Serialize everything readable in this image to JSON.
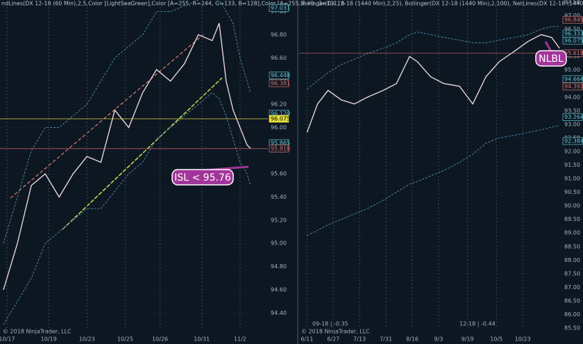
{
  "chart_data": [
    {
      "type": "line",
      "title": "ndLines(DX 12-18 (60 Min),2,5,Color [LightSeaGreen],Color [A=255, R=244, G=133, B=128],Color [A=255, R=0, G=131, B",
      "x": [
        1,
        5,
        9,
        13,
        17,
        21,
        25,
        29,
        33,
        37,
        41,
        45,
        49,
        53,
        57,
        61,
        63,
        65,
        67,
        69,
        71,
        72
      ],
      "xlim": [
        0,
        77
      ],
      "xticks": [
        {
          "value": 2,
          "label": "10/17"
        },
        {
          "value": 14,
          "label": "10/19"
        },
        {
          "value": 25,
          "label": "10/23"
        },
        {
          "value": 36,
          "label": "10/25"
        },
        {
          "value": 46,
          "label": "10/26"
        },
        {
          "value": 58,
          "label": "10/31"
        },
        {
          "value": 69,
          "label": "11/2"
        }
      ],
      "ylim": [
        94.27,
        97.04
      ],
      "yticks": [
        {
          "value": 94.4,
          "label": "94.40"
        },
        {
          "value": 94.6,
          "label": "94.60"
        },
        {
          "value": 94.8,
          "label": "94.80"
        },
        {
          "value": 95,
          "label": "95.00"
        },
        {
          "value": 95.2,
          "label": "95.20"
        },
        {
          "value": 95.4,
          "label": "95.40"
        },
        {
          "value": 95.6,
          "label": "95.60"
        },
        {
          "value": 95.8,
          "label": "95.80"
        },
        {
          "value": 96,
          "label": "96.00"
        },
        {
          "value": 96.2,
          "label": "96.20"
        },
        {
          "value": 96.4,
          "label": "96.40"
        },
        {
          "value": 96.6,
          "label": "96.60"
        },
        {
          "value": 96.8,
          "label": "96.80"
        },
        {
          "value": 97,
          "label": "97.00"
        }
      ],
      "series": [
        {
          "name": "Price",
          "color": "#e9d6dc",
          "values": [
            94.6,
            95.0,
            95.5,
            95.6,
            95.4,
            95.6,
            95.75,
            95.7,
            96.15,
            96.0,
            96.3,
            96.5,
            96.4,
            96.55,
            96.8,
            96.75,
            96.9,
            96.4,
            96.15,
            96.0,
            95.85,
            95.82
          ]
        },
        {
          "name": "Upper band",
          "color": "#4a86a8",
          "values": [
            95.0,
            95.4,
            95.8,
            96.0,
            96.0,
            96.1,
            96.2,
            96.4,
            96.6,
            96.7,
            96.8,
            97.0,
            97.0,
            97.05,
            97.1,
            97.15,
            97.1,
            97.0,
            96.9,
            96.6,
            96.4,
            96.3
          ]
        },
        {
          "name": "Lower band",
          "color": "#4a86a8",
          "values": [
            94.3,
            94.5,
            94.7,
            95.0,
            95.1,
            95.2,
            95.3,
            95.3,
            95.45,
            95.6,
            95.7,
            95.9,
            96.0,
            96.1,
            96.2,
            96.3,
            96.25,
            96.1,
            95.9,
            95.7,
            95.6,
            95.5
          ]
        }
      ],
      "price_tags": [
        {
          "value": 97.031,
          "label": "97.031",
          "color": "#5fc9d6"
        },
        {
          "value": 96.448,
          "label": "96.448",
          "color": "#5fc9d6"
        },
        {
          "value": 96.381,
          "label": "96.381",
          "color": "#e0706c"
        },
        {
          "value": 96.12,
          "label": "96.120",
          "color": "#5fc9d6"
        },
        {
          "value": 96.075,
          "label": "96.075",
          "color": "#e8e040",
          "line": true
        },
        {
          "value": 95.865,
          "label": "95.865",
          "color": "#5fc9d6"
        },
        {
          "value": 95.818,
          "label": "95.818",
          "color": "#e0706c",
          "line": true
        }
      ],
      "annotation": "ISL < 95.76",
      "footer": [
        "© 2018 NinjaTrader, LLC"
      ]
    },
    {
      "type": "line",
      "title": "Bollinger(DX 12-18 (1440 Min),2,25), Bollinger(DX 12-18 (1440 Min),2,100), NetLines(DX 12-18 (1440 Min),3,5,Colo",
      "x": [
        3,
        7,
        11,
        16,
        21,
        26,
        32,
        37,
        42,
        45,
        50,
        55,
        61,
        66,
        71,
        76,
        82,
        87,
        92,
        96,
        99
      ],
      "xlim": [
        0,
        100
      ],
      "xticks": [
        {
          "value": 3,
          "label": "6/11"
        },
        {
          "value": 13,
          "label": "6/27"
        },
        {
          "value": 23,
          "label": "7/13"
        },
        {
          "value": 33,
          "label": "7/31"
        },
        {
          "value": 43,
          "label": "8/16"
        },
        {
          "value": 53,
          "label": "9/3"
        },
        {
          "value": 64,
          "label": "9/19"
        },
        {
          "value": 75,
          "label": "10/5"
        },
        {
          "value": 85,
          "label": "10/23"
        }
      ],
      "ylim": [
        85.5,
        97.5
      ],
      "yticks": [
        {
          "value": 85.5,
          "label": "85.50"
        },
        {
          "value": 86,
          "label": "86.00"
        },
        {
          "value": 86.5,
          "label": "86.50"
        },
        {
          "value": 87,
          "label": "87.00"
        },
        {
          "value": 87.5,
          "label": "87.50"
        },
        {
          "value": 88,
          "label": "88.00"
        },
        {
          "value": 88.5,
          "label": "88.50"
        },
        {
          "value": 89,
          "label": "89.00"
        },
        {
          "value": 89.5,
          "label": "89.50"
        },
        {
          "value": 90,
          "label": "90.00"
        },
        {
          "value": 90.5,
          "label": "90.50"
        },
        {
          "value": 91,
          "label": "91.00"
        },
        {
          "value": 91.5,
          "label": "91.50"
        },
        {
          "value": 92,
          "label": "92.00"
        },
        {
          "value": 92.5,
          "label": "92.50"
        },
        {
          "value": 93,
          "label": "93.00"
        },
        {
          "value": 93.5,
          "label": "93.50"
        },
        {
          "value": 94,
          "label": "94.00"
        },
        {
          "value": 94.5,
          "label": "94.50"
        },
        {
          "value": 95,
          "label": "95.00"
        },
        {
          "value": 95.5,
          "label": "95.50"
        },
        {
          "value": 96,
          "label": "96.00"
        },
        {
          "value": 96.5,
          "label": "96.50"
        },
        {
          "value": 97,
          "label": "97.00"
        },
        {
          "value": 97.5,
          "label": "97.50"
        }
      ],
      "series": [
        {
          "name": "Price",
          "color": "#e9d6dc",
          "values": [
            92.7,
            93.75,
            94.25,
            93.9,
            93.75,
            94.0,
            94.25,
            94.5,
            95.5,
            95.3,
            94.75,
            94.5,
            94.4,
            93.75,
            94.75,
            95.3,
            95.7,
            96.05,
            96.3,
            96.2,
            95.8
          ]
        },
        {
          "name": "Upper band",
          "color": "#4a86a8",
          "values": [
            94.3,
            94.6,
            94.9,
            95.2,
            95.4,
            95.6,
            95.8,
            96.0,
            96.3,
            96.4,
            96.3,
            96.2,
            96.1,
            96.0,
            96.0,
            96.1,
            96.2,
            96.3,
            96.5,
            96.6,
            96.6
          ]
        },
        {
          "name": "Lower band",
          "color": "#4a86a8",
          "values": [
            88.9,
            89.1,
            89.3,
            89.5,
            89.7,
            89.9,
            90.2,
            90.5,
            90.8,
            90.9,
            91.1,
            91.3,
            91.6,
            91.9,
            92.3,
            92.5,
            92.6,
            92.7,
            92.8,
            92.9,
            92.95
          ]
        }
      ],
      "price_tags": [
        {
          "value": 96.845,
          "label": "96.845",
          "color": "#e0706c"
        },
        {
          "value": 96.333,
          "label": "96.333",
          "color": "#5fc9d6"
        },
        {
          "value": 96.075,
          "label": "96.075",
          "color": "#5fc9d6"
        },
        {
          "value": 95.619,
          "label": "95.619",
          "color": "#e0706c",
          "line": true
        },
        {
          "value": 94.664,
          "label": "94.664",
          "color": "#5fc9d6"
        },
        {
          "value": 94.393,
          "label": "94.393",
          "color": "#e0706c"
        },
        {
          "value": 93.264,
          "label": "93.264",
          "color": "#5fc9d6"
        },
        {
          "value": 92.384,
          "label": "92.384",
          "color": "#5fc9d6"
        }
      ],
      "annotation": "NLBL",
      "footer": [
        "© 2018 NinjaTrader, LLC",
        "09-18 | -0.35",
        "12-18 | -0.44"
      ]
    }
  ]
}
